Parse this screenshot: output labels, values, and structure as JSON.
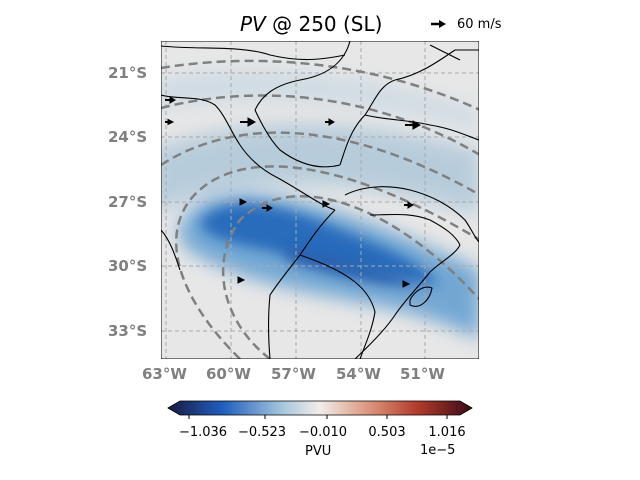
{
  "title": {
    "variable": "PV",
    "rest": " @ 250 (SL)"
  },
  "reference_vector": {
    "label": "60 m/s"
  },
  "lat_labels": [
    "21°S",
    "24°S",
    "27°S",
    "30°S",
    "33°S"
  ],
  "lon_labels": [
    "63°W",
    "60°W",
    "57°W",
    "54°W",
    "51°W"
  ],
  "colorbar": {
    "ticks": [
      "−1.036",
      "−0.523",
      "−0.010",
      "0.503",
      "1.016"
    ],
    "label": "PVU",
    "exponent": "1e−5",
    "colors": [
      "#1a1a40",
      "#1f5fbf",
      "#a9c8dd",
      "#f2ecea",
      "#c8583a",
      "#7a1030",
      "#2e0f0f"
    ]
  },
  "colors": {
    "negative_pv": "#2a6fc4",
    "background": "#e6e6e6",
    "contour": "#808080"
  }
}
